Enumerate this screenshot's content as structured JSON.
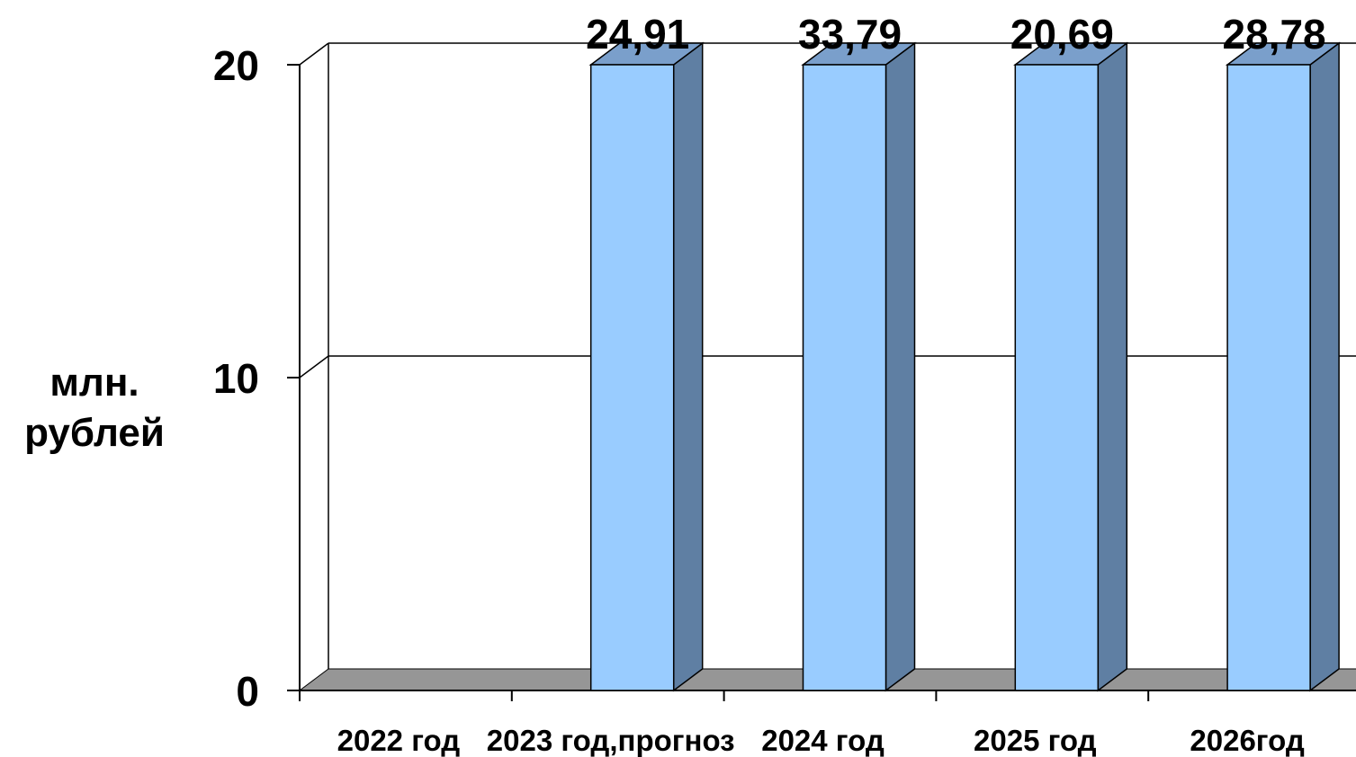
{
  "chart_data": {
    "type": "bar",
    "title": "",
    "xlabel": "",
    "ylabel_lines": [
      "млн.",
      "рублей"
    ],
    "categories": [
      "2022 год",
      "2023 год,прогноз",
      "2024 год",
      "2025 год",
      "2026год"
    ],
    "values": [
      0,
      24.91,
      33.79,
      20.69,
      28.78
    ],
    "data_labels": [
      "",
      "24,91",
      "33,79",
      "20,69",
      "28,78"
    ],
    "yticks": [
      0,
      10,
      20
    ],
    "ytick_labels": [
      "0",
      "10",
      "20"
    ],
    "ylim": [
      0,
      20
    ],
    "grid": true,
    "legend": "none",
    "colors": {
      "bar_front": "#99CCFF",
      "bar_side": "#5F7FA3",
      "bar_top": "#7A9FCB",
      "floor": "#969696",
      "outline": "#000000"
    }
  }
}
